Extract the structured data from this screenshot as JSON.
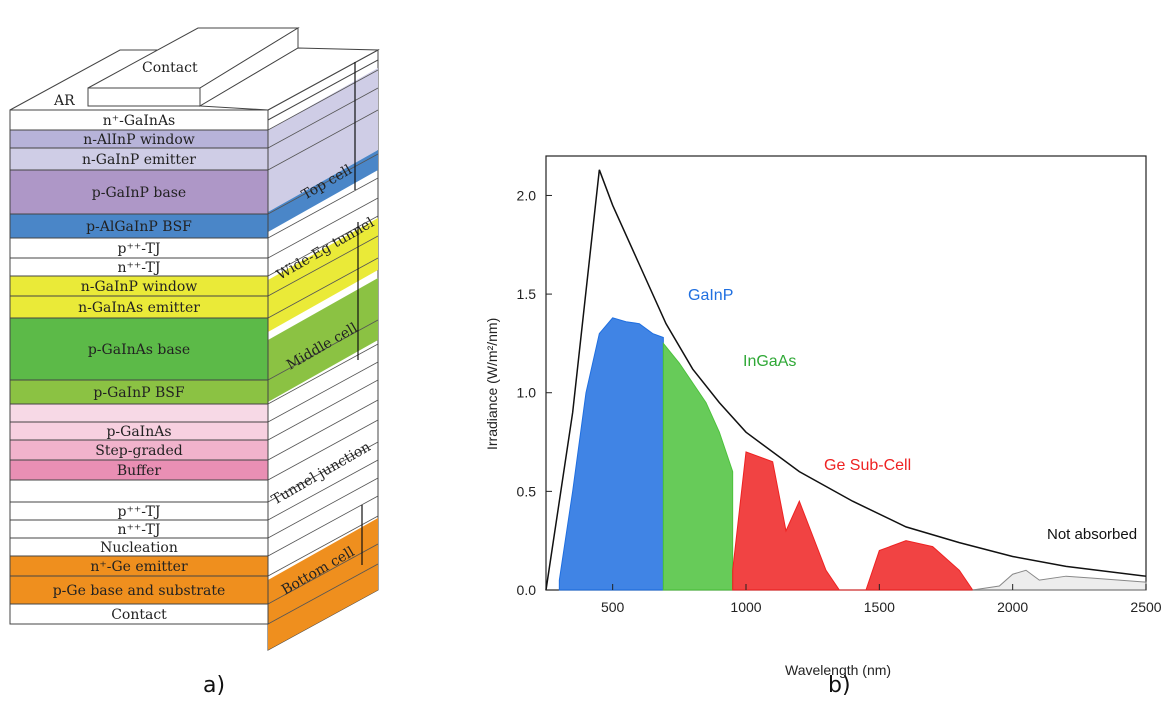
{
  "panel_a": {
    "caption": "a)",
    "top_labels": {
      "ar": "AR",
      "contact": "Contact"
    },
    "layers": [
      {
        "text": "n⁺-GaInAs",
        "color": "#ffffff"
      },
      {
        "text": "n-AlInP window",
        "color": "#b7b3d9"
      },
      {
        "text": "n-GaInP emitter",
        "color": "#cfcde6"
      },
      {
        "text": "p-GaInP base",
        "color": "#ae97c7"
      },
      {
        "text": "p-AlGaInP BSF",
        "color": "#4a86c8"
      },
      {
        "text": "p⁺⁺-TJ",
        "color": "#ffffff"
      },
      {
        "text": "n⁺⁺-TJ",
        "color": "#ffffff"
      },
      {
        "text": "n-GaInP window",
        "color": "#eaea38"
      },
      {
        "text": "n-GaInAs emitter",
        "color": "#eaea38"
      },
      {
        "text": "p-GaInAs base",
        "color": "#5cba48"
      },
      {
        "text": "p-GaInP BSF",
        "color": "#8bc243"
      },
      {
        "text": "",
        "color": "#f7d9e6"
      },
      {
        "text": "p-GaInAs",
        "color": "#f7d0e0"
      },
      {
        "text": "Step-graded",
        "color": "#f1b3cc"
      },
      {
        "text": "Buffer",
        "color": "#e98fb4"
      },
      {
        "text": "",
        "color": "#ffffff"
      },
      {
        "text": "p⁺⁺-TJ",
        "color": "#ffffff"
      },
      {
        "text": "n⁺⁺-TJ",
        "color": "#ffffff"
      },
      {
        "text": "Nucleation",
        "color": "#ffffff"
      },
      {
        "text": "n⁺-Ge emitter",
        "color": "#ef8f1e"
      },
      {
        "text": "p-Ge base and substrate",
        "color": "#ef8f1e"
      },
      {
        "text": "Contact",
        "color": "#ffffff"
      }
    ],
    "side_labels": {
      "top_cell": "Top cell",
      "wide_tunnel": "Wide-Eg tunnel",
      "middle_cell": "Middle cell",
      "tunnel_junction": "Tunnel junction",
      "bottom_cell": "Bottom cell"
    }
  },
  "panel_b": {
    "caption": "b)",
    "annotations": {
      "gainp": "GaInP",
      "ingaas": "InGaAs",
      "ge": "Ge Sub-Cell",
      "not_absorbed": "Not absorbed"
    },
    "colors": {
      "gainp": "#1f6fe0",
      "ingaas": "#4cc23c",
      "ge": "#ee2222",
      "spectrum": "#111111"
    }
  },
  "chart_data": {
    "type": "area",
    "xlabel": "Wavelength (nm)",
    "ylabel": "Irradiance (W/m²/nm)",
    "xlim": [
      250,
      2500
    ],
    "ylim": [
      0,
      2.2
    ],
    "xticks": [
      500,
      1000,
      1500,
      2000,
      2500
    ],
    "yticks": [
      0.0,
      0.5,
      1.0,
      1.5,
      2.0
    ],
    "xtick_labels": [
      "500",
      "1000",
      "1500",
      "2000",
      "2500"
    ],
    "ytick_labels": [
      "0.0",
      "0.5",
      "1.0",
      "1.5",
      "2.0"
    ],
    "series": [
      {
        "name": "GaInP",
        "x_range": [
          300,
          690
        ],
        "x": [
          300,
          350,
          400,
          450,
          500,
          550,
          600,
          650,
          690
        ],
        "y": [
          0.05,
          0.5,
          1.0,
          1.3,
          1.38,
          1.36,
          1.35,
          1.3,
          1.28
        ]
      },
      {
        "name": "InGaAs",
        "x_range": [
          690,
          950
        ],
        "x": [
          690,
          750,
          800,
          850,
          900,
          950
        ],
        "y": [
          1.25,
          1.15,
          1.05,
          0.95,
          0.8,
          0.6
        ]
      },
      {
        "name": "Ge Sub-Cell",
        "x_range": [
          950,
          1850
        ],
        "x": [
          950,
          1000,
          1100,
          1150,
          1200,
          1300,
          1350,
          1450,
          1500,
          1600,
          1700,
          1800,
          1850
        ],
        "y": [
          0.1,
          0.7,
          0.65,
          0.3,
          0.45,
          0.1,
          0.0,
          0.0,
          0.2,
          0.25,
          0.22,
          0.1,
          0.0
        ]
      },
      {
        "name": "Not absorbed",
        "x_range": [
          1850,
          2500
        ],
        "x": [
          1850,
          1950,
          2000,
          2050,
          2100,
          2200,
          2300,
          2400,
          2500
        ],
        "y": [
          0.0,
          0.02,
          0.08,
          0.1,
          0.05,
          0.07,
          0.06,
          0.05,
          0.04
        ]
      }
    ],
    "envelope": {
      "x": [
        250,
        350,
        450,
        500,
        600,
        700,
        800,
        900,
        1000,
        1200,
        1400,
        1600,
        1800,
        2000,
        2200,
        2500
      ],
      "y": [
        0.0,
        0.9,
        2.13,
        1.95,
        1.65,
        1.35,
        1.12,
        0.95,
        0.8,
        0.6,
        0.45,
        0.32,
        0.24,
        0.17,
        0.12,
        0.07
      ]
    }
  }
}
